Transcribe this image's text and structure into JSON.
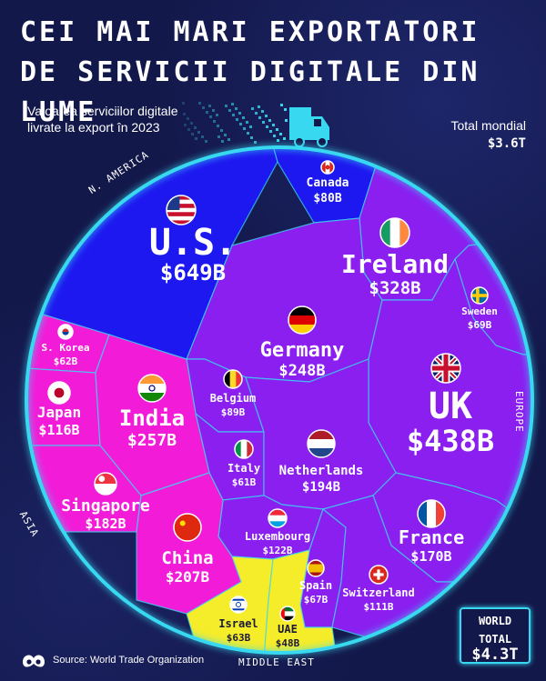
{
  "title": "CEI MAI MARI EXPORTATORI DE SERVICII DIGITALE DIN LUME",
  "subtitle": "Valoarea serviciilor digitale livrate la export în 2023",
  "total_mondial": {
    "label": "Total mondial",
    "value": "$3.6T"
  },
  "world_total": {
    "line1": "WORLD",
    "line2": "TOTAL",
    "value": "$4.3T"
  },
  "source": "Source: World Trade Organization",
  "regions": {
    "americas": "N. AMERICA",
    "europe": "EUROPE",
    "asia": "ASIA",
    "middle_east": "MIDDLE EAST"
  },
  "colors": {
    "americas": "#1d18f0",
    "europe": "#8a1ff0",
    "asia": "#f21cd8",
    "middle_east": "#f5ec2a",
    "glow": "#38d9f0"
  },
  "chart_data": {
    "type": "voronoi-treemap",
    "unit": "USD billions",
    "total_shown": "$3.6T",
    "world_total": "$4.3T",
    "series": [
      {
        "country": "U.S.",
        "value_label": "$649B",
        "value": 649,
        "region": "americas",
        "flag": "us-flag"
      },
      {
        "country": "Canada",
        "value_label": "$80B",
        "value": 80,
        "region": "americas",
        "flag": "canada-flag"
      },
      {
        "country": "Ireland",
        "value_label": "$328B",
        "value": 328,
        "region": "europe",
        "flag": "ireland-flag"
      },
      {
        "country": "Sweden",
        "value_label": "$69B",
        "value": 69,
        "region": "europe",
        "flag": "sweden-flag"
      },
      {
        "country": "Germany",
        "value_label": "$248B",
        "value": 248,
        "region": "europe",
        "flag": "germany-flag"
      },
      {
        "country": "UK",
        "value_label": "$438B",
        "value": 438,
        "region": "europe",
        "flag": "uk-flag"
      },
      {
        "country": "Belgium",
        "value_label": "$89B",
        "value": 89,
        "region": "europe",
        "flag": "belgium-flag"
      },
      {
        "country": "Italy",
        "value_label": "$61B",
        "value": 61,
        "region": "europe",
        "flag": "italy-flag"
      },
      {
        "country": "Netherlands",
        "value_label": "$194B",
        "value": 194,
        "region": "europe",
        "flag": "netherlands-flag"
      },
      {
        "country": "Luxembourg",
        "value_label": "$122B",
        "value": 122,
        "region": "europe",
        "flag": "luxembourg-flag"
      },
      {
        "country": "France",
        "value_label": "$170B",
        "value": 170,
        "region": "europe",
        "flag": "france-flag"
      },
      {
        "country": "Spain",
        "value_label": "$67B",
        "value": 67,
        "region": "europe",
        "flag": "spain-flag"
      },
      {
        "country": "Switzerland",
        "value_label": "$111B",
        "value": 111,
        "region": "europe",
        "flag": "switzerland-flag"
      },
      {
        "country": "S. Korea",
        "value_label": "$62B",
        "value": 62,
        "region": "asia",
        "flag": "korea-flag"
      },
      {
        "country": "Japan",
        "value_label": "$116B",
        "value": 116,
        "region": "asia",
        "flag": "japan-flag"
      },
      {
        "country": "India",
        "value_label": "$257B",
        "value": 257,
        "region": "asia",
        "flag": "india-flag"
      },
      {
        "country": "Singapore",
        "value_label": "$182B",
        "value": 182,
        "region": "asia",
        "flag": "singapore-flag"
      },
      {
        "country": "China",
        "value_label": "$207B",
        "value": 207,
        "region": "asia",
        "flag": "china-flag"
      },
      {
        "country": "Israel",
        "value_label": "$63B",
        "value": 63,
        "region": "middle_east",
        "flag": "israel-flag"
      },
      {
        "country": "UAE",
        "value_label": "$48B",
        "value": 48,
        "region": "middle_east",
        "flag": "uae-flag"
      }
    ]
  }
}
